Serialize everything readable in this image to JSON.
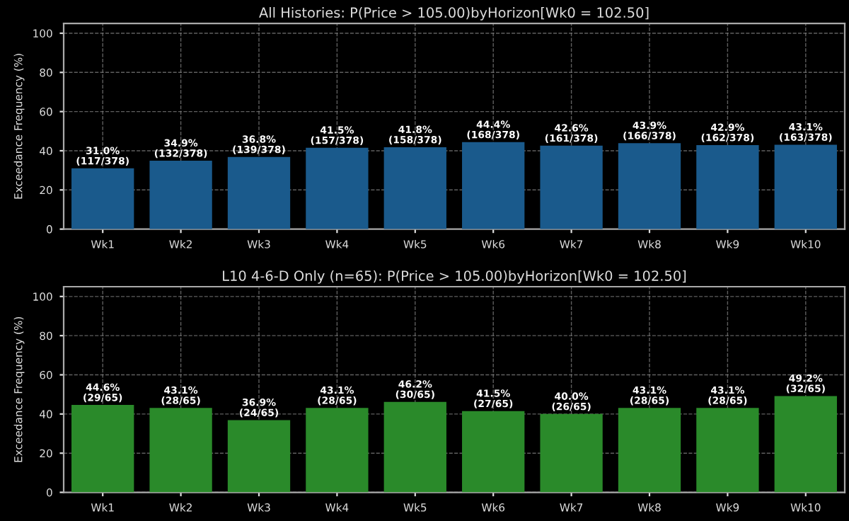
{
  "chart_data": [
    {
      "type": "bar",
      "title": "All Histories: P(Price > 105.00)byHorizon[Wk0 = 102.50]",
      "ylabel": "Exceedance Frequency (%)",
      "categories": [
        "Wk1",
        "Wk2",
        "Wk3",
        "Wk4",
        "Wk5",
        "Wk6",
        "Wk7",
        "Wk8",
        "Wk9",
        "Wk10"
      ],
      "values": [
        31.0,
        34.9,
        36.8,
        41.5,
        41.8,
        44.4,
        42.6,
        43.9,
        42.9,
        43.1
      ],
      "value_labels": [
        "31.0%\n(117/378)",
        "34.9%\n(132/378)",
        "36.8%\n(139/378)",
        "41.5%\n(157/378)",
        "41.8%\n(158/378)",
        "44.4%\n(168/378)",
        "42.6%\n(161/378)",
        "43.9%\n(166/378)",
        "42.9%\n(162/378)",
        "43.1%\n(163/378)"
      ],
      "color": "#1a5a8c",
      "ylim": [
        0,
        105
      ],
      "yticks": [
        0,
        20,
        40,
        60,
        80,
        100
      ],
      "grid": true
    },
    {
      "type": "bar",
      "title": "L10 4-6-D Only (n=65): P(Price > 105.00)byHorizon[Wk0 = 102.50]",
      "ylabel": "Exceedance Frequency (%)",
      "categories": [
        "Wk1",
        "Wk2",
        "Wk3",
        "Wk4",
        "Wk5",
        "Wk6",
        "Wk7",
        "Wk8",
        "Wk9",
        "Wk10"
      ],
      "values": [
        44.6,
        43.1,
        36.9,
        43.1,
        46.2,
        41.5,
        40.0,
        43.1,
        43.1,
        49.2
      ],
      "value_labels": [
        "44.6%\n(29/65)",
        "43.1%\n(28/65)",
        "36.9%\n(24/65)",
        "43.1%\n(28/65)",
        "46.2%\n(30/65)",
        "41.5%\n(27/65)",
        "40.0%\n(26/65)",
        "43.1%\n(28/65)",
        "43.1%\n(28/65)",
        "49.2%\n(32/65)"
      ],
      "color": "#2a8a2a",
      "ylim": [
        0,
        105
      ],
      "yticks": [
        0,
        20,
        40,
        60,
        80,
        100
      ],
      "grid": true
    }
  ]
}
